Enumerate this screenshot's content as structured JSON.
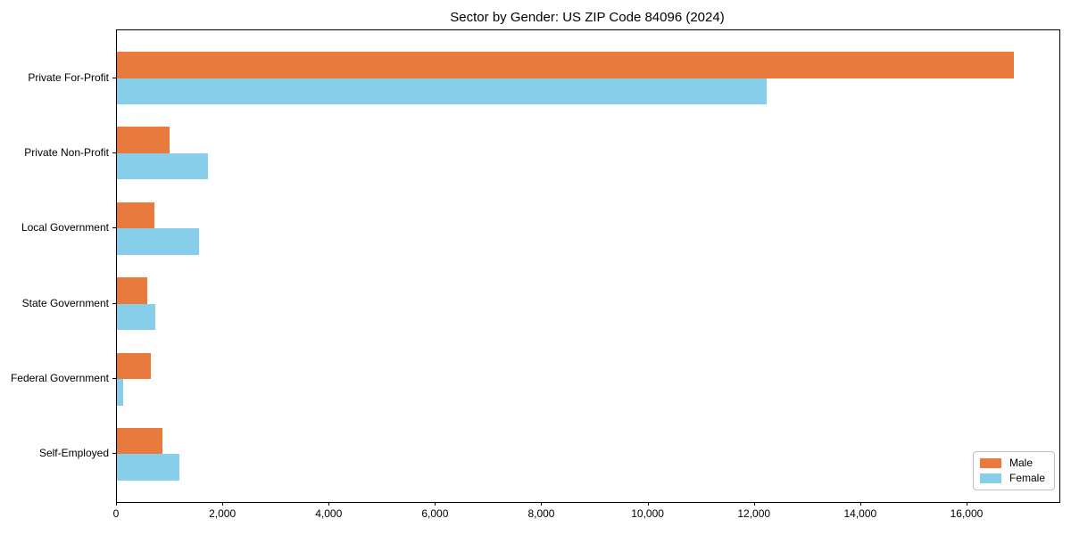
{
  "title": "Sector by Gender: US ZIP Code 84096 (2024)",
  "chart_data": {
    "type": "bar",
    "orientation": "horizontal",
    "title": "Sector by Gender: US ZIP Code 84096 (2024)",
    "categories": [
      "Private For-Profit",
      "Private Non-Profit",
      "Local Government",
      "State Government",
      "Federal Government",
      "Self-Employed"
    ],
    "series": [
      {
        "name": "Male",
        "color": "#E87A3D",
        "values": [
          16870,
          990,
          710,
          570,
          640,
          860
        ]
      },
      {
        "name": "Female",
        "color": "#87CEEB",
        "values": [
          12220,
          1710,
          1540,
          720,
          120,
          1180
        ]
      }
    ],
    "xlabel": "",
    "ylabel": "",
    "xlim": [
      0,
      17730
    ],
    "xticks": [
      0,
      2000,
      4000,
      6000,
      8000,
      10000,
      12000,
      14000,
      16000
    ],
    "xtick_labels": [
      "0",
      "2,000",
      "4,000",
      "6,000",
      "8,000",
      "10,000",
      "12,000",
      "14,000",
      "16,000"
    ],
    "grid": false,
    "legend": {
      "position": "lower right"
    }
  }
}
